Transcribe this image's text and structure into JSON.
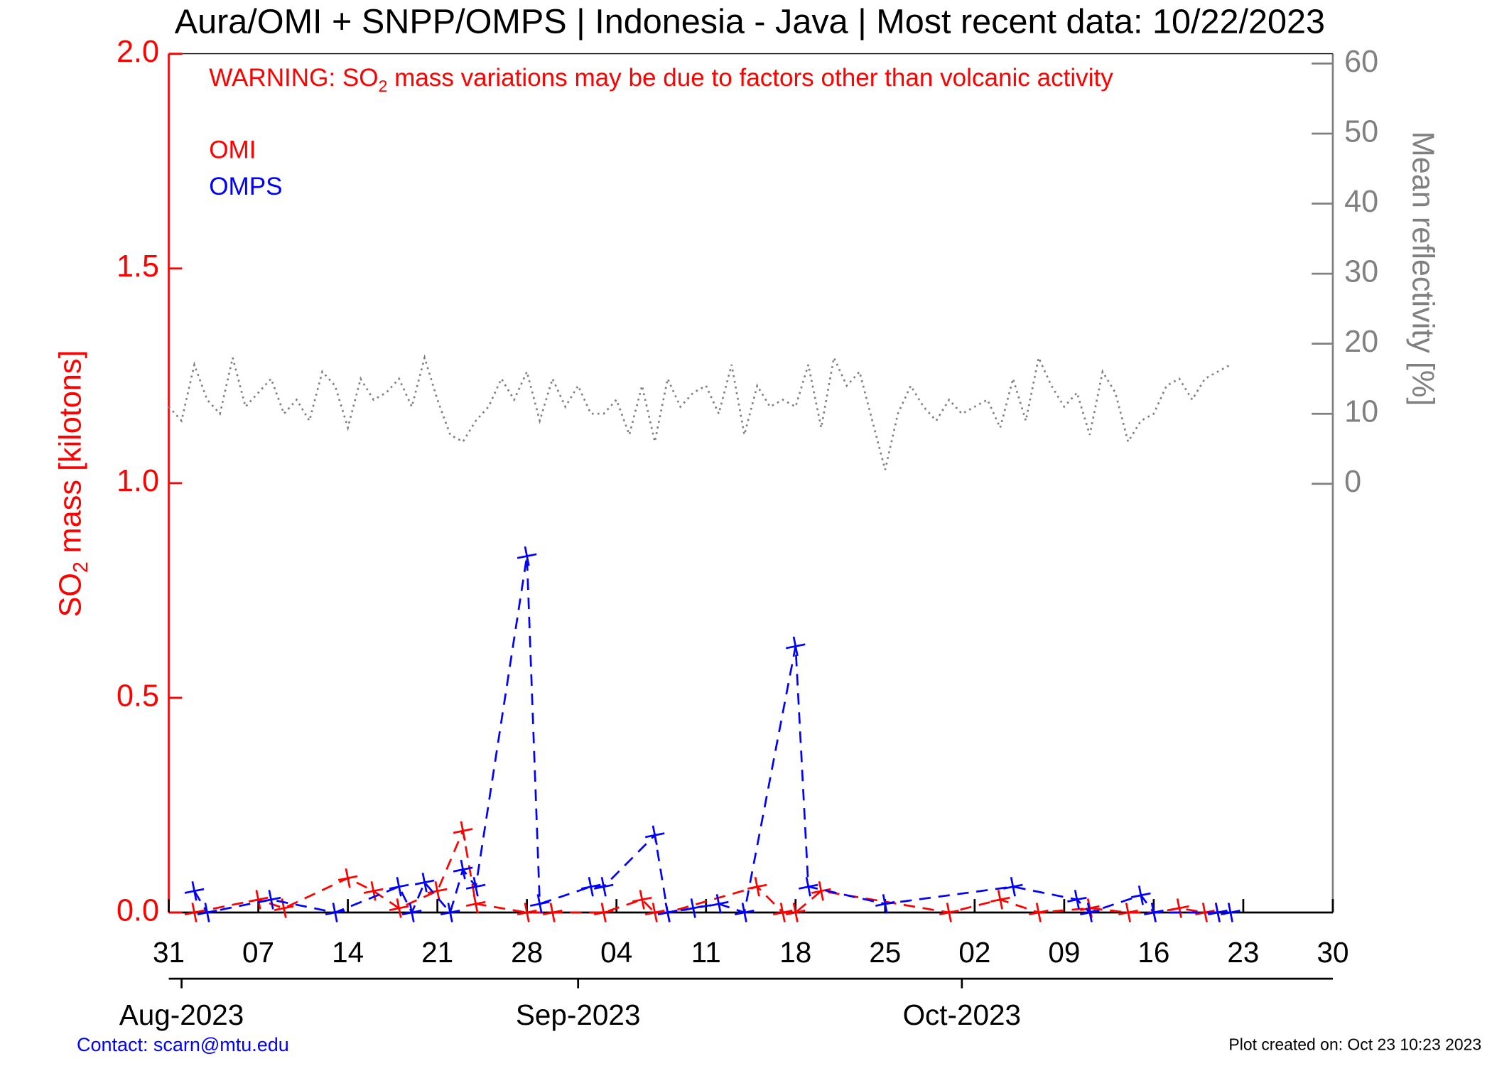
{
  "chart_data": {
    "type": "line",
    "title": "Aura/OMI + SNPP/OMPS | Indonesia - Java | Most recent data: 10/22/2023",
    "warning": [
      "WARNING: SO",
      "2",
      " mass variations may be due to factors other than volcanic activity"
    ],
    "y_label": [
      "SO",
      "2",
      " mass [kilotons]"
    ],
    "y2_label": "Mean reflectivity [%]",
    "contact": "Contact: scarn@mtu.edu",
    "created": "Plot created on: Oct 23 10:23 2023",
    "xlim": [
      "2023-07-31",
      "2023-10-30"
    ],
    "xticks": [
      {
        "value": "2023-07-31",
        "label": "31"
      },
      {
        "value": "2023-08-07",
        "label": "07"
      },
      {
        "value": "2023-08-14",
        "label": "14"
      },
      {
        "value": "2023-08-21",
        "label": "21"
      },
      {
        "value": "2023-08-28",
        "label": "28"
      },
      {
        "value": "2023-09-04",
        "label": "04"
      },
      {
        "value": "2023-09-11",
        "label": "11"
      },
      {
        "value": "2023-09-18",
        "label": "18"
      },
      {
        "value": "2023-09-25",
        "label": "25"
      },
      {
        "value": "2023-10-02",
        "label": "02"
      },
      {
        "value": "2023-10-09",
        "label": "09"
      },
      {
        "value": "2023-10-16",
        "label": "16"
      },
      {
        "value": "2023-10-23",
        "label": "23"
      },
      {
        "value": "2023-10-30",
        "label": "30"
      }
    ],
    "month_ticks": [
      {
        "value": "2023-08-01",
        "label": "Aug-2023"
      },
      {
        "value": "2023-09-01",
        "label": "Sep-2023"
      },
      {
        "value": "2023-10-01",
        "label": "Oct-2023"
      }
    ],
    "ylim": [
      0,
      2.0
    ],
    "yticks": [
      {
        "value": 0,
        "label": "0.0"
      },
      {
        "value": 0.5,
        "label": "0.5"
      },
      {
        "value": 1,
        "label": "1.0"
      },
      {
        "value": 1.5,
        "label": "1.5"
      },
      {
        "value": 2,
        "label": "2.0"
      }
    ],
    "y2lim": [
      -61.2,
      61.4
    ],
    "y2ticks": [
      0,
      10,
      20,
      30,
      40,
      50,
      60
    ],
    "series": [
      {
        "name": "OMI",
        "color": "#ff0000",
        "x": [
          "2023-08-02",
          "2023-08-07",
          "2023-08-09",
          "2023-08-14",
          "2023-08-16",
          "2023-08-18",
          "2023-08-21",
          "2023-08-23",
          "2023-08-24",
          "2023-08-28",
          "2023-08-30",
          "2023-09-03",
          "2023-09-06",
          "2023-09-07",
          "2023-09-08",
          "2023-09-15",
          "2023-09-17",
          "2023-09-18",
          "2023-09-20",
          "2023-09-30",
          "2023-10-04",
          "2023-10-07",
          "2023-10-11",
          "2023-10-14",
          "2023-10-16",
          "2023-10-18",
          "2023-10-20",
          "2023-10-21"
        ],
        "values": [
          0.0,
          0.03,
          0.01,
          0.08,
          0.05,
          0.01,
          0.05,
          0.19,
          0.02,
          0.0,
          0.0,
          0.0,
          0.03,
          0.0,
          0.0,
          0.06,
          0.0,
          0.0,
          0.05,
          0.0,
          0.03,
          0.0,
          0.01,
          0.0,
          0.0,
          0.01,
          0.0,
          0.0
        ]
      },
      {
        "name": "OMPS",
        "color": "#0000ff",
        "x": [
          "2023-08-02",
          "2023-08-03",
          "2023-08-08",
          "2023-08-13",
          "2023-08-18",
          "2023-08-19",
          "2023-08-20",
          "2023-08-22",
          "2023-08-23",
          "2023-08-24",
          "2023-08-28",
          "2023-08-29",
          "2023-09-02",
          "2023-09-03",
          "2023-09-07",
          "2023-09-08",
          "2023-09-10",
          "2023-09-12",
          "2023-09-14",
          "2023-09-18",
          "2023-09-19",
          "2023-09-25",
          "2023-10-05",
          "2023-10-10",
          "2023-10-11",
          "2023-10-15",
          "2023-10-16",
          "2023-10-21",
          "2023-10-22"
        ],
        "values": [
          0.05,
          0.0,
          0.03,
          0.0,
          0.06,
          0.0,
          0.07,
          0.0,
          0.1,
          0.06,
          0.83,
          0.02,
          0.06,
          0.06,
          0.18,
          0.0,
          0.01,
          0.02,
          0.0,
          0.62,
          0.06,
          0.02,
          0.06,
          0.03,
          0.0,
          0.04,
          0.0,
          0.0,
          0.0
        ]
      },
      {
        "name": "Mean reflectivity",
        "color": "#808080",
        "axis": "y2",
        "x": [
          "2023-07-31",
          "2023-08-01",
          "2023-08-02",
          "2023-08-03",
          "2023-08-04",
          "2023-08-05",
          "2023-08-06",
          "2023-08-07",
          "2023-08-08",
          "2023-08-09",
          "2023-08-10",
          "2023-08-11",
          "2023-08-12",
          "2023-08-13",
          "2023-08-14",
          "2023-08-15",
          "2023-08-16",
          "2023-08-17",
          "2023-08-18",
          "2023-08-19",
          "2023-08-20",
          "2023-08-21",
          "2023-08-22",
          "2023-08-23",
          "2023-08-24",
          "2023-08-25",
          "2023-08-26",
          "2023-08-27",
          "2023-08-28",
          "2023-08-29",
          "2023-08-30",
          "2023-08-31",
          "2023-09-01",
          "2023-09-02",
          "2023-09-03",
          "2023-09-04",
          "2023-09-05",
          "2023-09-06",
          "2023-09-07",
          "2023-09-08",
          "2023-09-09",
          "2023-09-10",
          "2023-09-11",
          "2023-09-12",
          "2023-09-13",
          "2023-09-14",
          "2023-09-15",
          "2023-09-16",
          "2023-09-17",
          "2023-09-18",
          "2023-09-19",
          "2023-09-20",
          "2023-09-21",
          "2023-09-22",
          "2023-09-23",
          "2023-09-24",
          "2023-09-25",
          "2023-09-26",
          "2023-09-27",
          "2023-09-28",
          "2023-09-29",
          "2023-09-30",
          "2023-10-01",
          "2023-10-02",
          "2023-10-03",
          "2023-10-04",
          "2023-10-05",
          "2023-10-06",
          "2023-10-07",
          "2023-10-08",
          "2023-10-09",
          "2023-10-10",
          "2023-10-11",
          "2023-10-12",
          "2023-10-13",
          "2023-10-14",
          "2023-10-15",
          "2023-10-16",
          "2023-10-17",
          "2023-10-18",
          "2023-10-19",
          "2023-10-20",
          "2023-10-21",
          "2023-10-22"
        ],
        "values": [
          11,
          9,
          17,
          12,
          10,
          18,
          11,
          13,
          15,
          10,
          12,
          9,
          16,
          14,
          8,
          15,
          12,
          13,
          15,
          11,
          18,
          12,
          7,
          6,
          9,
          11,
          15,
          12,
          16,
          9,
          15,
          11,
          14,
          10,
          10,
          12,
          7,
          14,
          6,
          15,
          11,
          13,
          14,
          10,
          17,
          7,
          14,
          11,
          12,
          11,
          17,
          8,
          18,
          14,
          16,
          9,
          2,
          10,
          14,
          11,
          9,
          12,
          10,
          11,
          12,
          8,
          15,
          9,
          18,
          14,
          11,
          13,
          7,
          16,
          13,
          6,
          9,
          10,
          14,
          15,
          12,
          15,
          16,
          17
        ]
      }
    ]
  }
}
